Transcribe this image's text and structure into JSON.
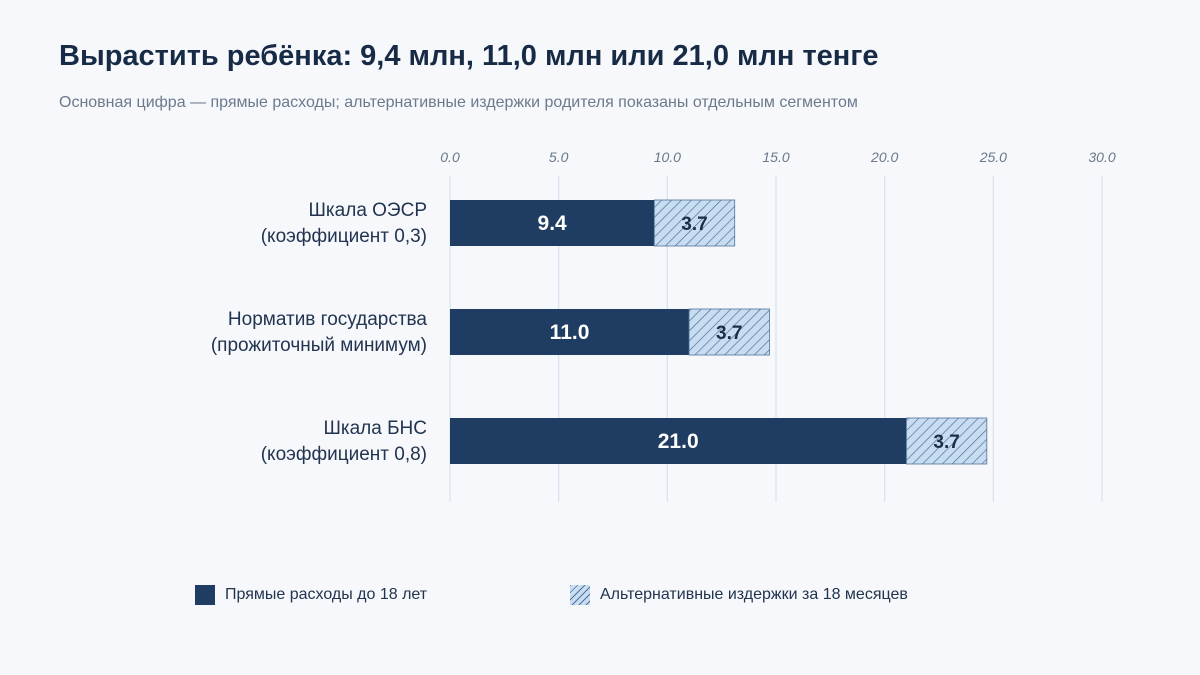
{
  "title": "Вырастить ребёнка: 9,4 млн, 11,0 млн или 21,0 млн тенге",
  "subtitle": "Основная цифра — прямые расходы; альтернативные издержки родителя показаны отдельным сегментом",
  "colors": {
    "primary": "#1f3d63",
    "alt_fill": "#c8ddf2",
    "alt_hatch": "#4f7396",
    "grid": "#d8e3ee"
  },
  "chart_data": {
    "type": "bar",
    "orientation": "horizontal",
    "stacked": true,
    "categories": [
      [
        "Шкала ОЭСР",
        "(коэффициент 0,3)"
      ],
      [
        "Норматив государства",
        "(прожиточный минимум)"
      ],
      [
        "Шкала БНС",
        "(коэффициент 0,8)"
      ]
    ],
    "series": [
      {
        "name": "Прямые расходы до 18 лет",
        "values": [
          9.4,
          11.0,
          21.0
        ],
        "labels": [
          "9.4",
          "11.0",
          "21.0"
        ]
      },
      {
        "name": "Альтернативные издержки за 18 месяцев",
        "values": [
          3.7,
          3.7,
          3.7
        ],
        "labels": [
          "3.7",
          "3.7",
          "3.7"
        ]
      }
    ],
    "xlim": [
      0,
      30
    ],
    "xticks": [
      0,
      5,
      10,
      15,
      20,
      25,
      30
    ],
    "xtick_labels": [
      "0.0",
      "5.0",
      "10.0",
      "15.0",
      "20.0",
      "25.0",
      "30.0"
    ],
    "x_axis_position": "top",
    "grid": true,
    "legend_position": "bottom"
  },
  "legend": [
    {
      "label": "Прямые расходы до 18 лет"
    },
    {
      "label": "Альтернативные издержки за 18 месяцев"
    }
  ]
}
